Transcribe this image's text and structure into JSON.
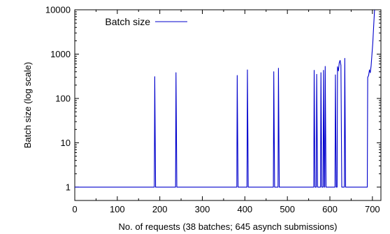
{
  "chart_data": {
    "type": "line",
    "title": "",
    "xlabel": "No. of requests (38 batches; 645 asynch submissions)",
    "ylabel": "Batch size (log scale)",
    "xlim": [
      0,
      720
    ],
    "ylim": [
      0.5,
      10000
    ],
    "yscale": "log",
    "x_ticks": [
      0,
      100,
      200,
      300,
      400,
      500,
      600,
      700
    ],
    "y_ticks": [
      1,
      10,
      100,
      1000,
      10000
    ],
    "x_tick_labels": [
      "0",
      "100",
      "200",
      "300",
      "400",
      "500",
      "600",
      "700"
    ],
    "y_tick_labels": [
      "1",
      "10",
      "100",
      "1000",
      "10000"
    ],
    "grid": false,
    "legend": {
      "position": "top-left",
      "entries": [
        "Batch size"
      ]
    },
    "series": [
      {
        "name": "Batch size",
        "color": "#0000cc",
        "points": [
          [
            0,
            1
          ],
          [
            187,
            1
          ],
          [
            188,
            310
          ],
          [
            190,
            1
          ],
          [
            237,
            1
          ],
          [
            238,
            380
          ],
          [
            240,
            1
          ],
          [
            381,
            1
          ],
          [
            382,
            330
          ],
          [
            384,
            1
          ],
          [
            405,
            1
          ],
          [
            406,
            440
          ],
          [
            408,
            1
          ],
          [
            467,
            1
          ],
          [
            468,
            400
          ],
          [
            470,
            1
          ],
          [
            478,
            1
          ],
          [
            479,
            480
          ],
          [
            481,
            1
          ],
          [
            562,
            1
          ],
          [
            563,
            430
          ],
          [
            565,
            1
          ],
          [
            568,
            1
          ],
          [
            569,
            350
          ],
          [
            571,
            1
          ],
          [
            578,
            1
          ],
          [
            579,
            380
          ],
          [
            581,
            1
          ],
          [
            584,
            1
          ],
          [
            585,
            430
          ],
          [
            587,
            1
          ],
          [
            588,
            1
          ],
          [
            589,
            530
          ],
          [
            591,
            1
          ],
          [
            612,
            1
          ],
          [
            613,
            340
          ],
          [
            615,
            1
          ],
          [
            617,
            1
          ],
          [
            618,
            520
          ],
          [
            620,
            420
          ],
          [
            622,
            640
          ],
          [
            624,
            720
          ],
          [
            626,
            560
          ],
          [
            628,
            1
          ],
          [
            634,
            1
          ],
          [
            635,
            800
          ],
          [
            637,
            1
          ],
          [
            688,
            1
          ],
          [
            689,
            300
          ],
          [
            691,
            330
          ],
          [
            693,
            440
          ],
          [
            695,
            380
          ],
          [
            697,
            550
          ],
          [
            699,
            1000
          ],
          [
            701,
            1800
          ],
          [
            703,
            4500
          ],
          [
            705,
            10000
          ]
        ]
      }
    ]
  },
  "colors": {
    "series": "#0000cc",
    "axis": "#000000",
    "background": "#ffffff"
  }
}
